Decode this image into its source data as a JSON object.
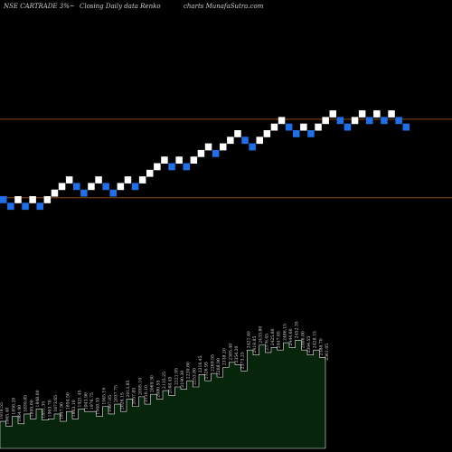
{
  "header": {
    "title": "NSE CARTRADE 3%~",
    "subtitle": "Closing Daily data  Renko",
    "source": "charts MunafaSutra.com"
  },
  "colors": {
    "background": "#000000",
    "up_brick": "#ffffff",
    "down_brick": "#1e6fe8",
    "reference_line": "#8a4a12",
    "volume_fill": "#06250a",
    "volume_stroke": "#e8e8e8"
  },
  "chart_data": [
    {
      "type": "renko",
      "box_size_percent": 3,
      "brick_level_range": [
        -1,
        20
      ],
      "bricks": [
        {
          "level": 0,
          "dir": "down"
        },
        {
          "level": -1,
          "dir": "down"
        },
        {
          "level": 0,
          "dir": "up"
        },
        {
          "level": -1,
          "dir": "down"
        },
        {
          "level": 0,
          "dir": "up"
        },
        {
          "level": -1,
          "dir": "down"
        },
        {
          "level": 0,
          "dir": "up"
        },
        {
          "level": 1,
          "dir": "up"
        },
        {
          "level": 2,
          "dir": "up"
        },
        {
          "level": 3,
          "dir": "up"
        },
        {
          "level": 2,
          "dir": "down"
        },
        {
          "level": 1,
          "dir": "down"
        },
        {
          "level": 2,
          "dir": "up"
        },
        {
          "level": 3,
          "dir": "up"
        },
        {
          "level": 2,
          "dir": "down"
        },
        {
          "level": 1,
          "dir": "down"
        },
        {
          "level": 2,
          "dir": "up"
        },
        {
          "level": 3,
          "dir": "up"
        },
        {
          "level": 2,
          "dir": "down"
        },
        {
          "level": 3,
          "dir": "up"
        },
        {
          "level": 4,
          "dir": "up"
        },
        {
          "level": 5,
          "dir": "up"
        },
        {
          "level": 6,
          "dir": "up"
        },
        {
          "level": 5,
          "dir": "down"
        },
        {
          "level": 6,
          "dir": "up"
        },
        {
          "level": 5,
          "dir": "down"
        },
        {
          "level": 6,
          "dir": "up"
        },
        {
          "level": 7,
          "dir": "up"
        },
        {
          "level": 8,
          "dir": "up"
        },
        {
          "level": 7,
          "dir": "down"
        },
        {
          "level": 8,
          "dir": "up"
        },
        {
          "level": 9,
          "dir": "up"
        },
        {
          "level": 10,
          "dir": "up"
        },
        {
          "level": 9,
          "dir": "down"
        },
        {
          "level": 8,
          "dir": "down"
        },
        {
          "level": 9,
          "dir": "up"
        },
        {
          "level": 10,
          "dir": "up"
        },
        {
          "level": 11,
          "dir": "up"
        },
        {
          "level": 12,
          "dir": "up"
        },
        {
          "level": 11,
          "dir": "down"
        },
        {
          "level": 10,
          "dir": "down"
        },
        {
          "level": 11,
          "dir": "up"
        },
        {
          "level": 10,
          "dir": "down"
        },
        {
          "level": 11,
          "dir": "up"
        },
        {
          "level": 12,
          "dir": "up"
        },
        {
          "level": 13,
          "dir": "up"
        },
        {
          "level": 12,
          "dir": "down"
        },
        {
          "level": 11,
          "dir": "down"
        },
        {
          "level": 12,
          "dir": "up"
        },
        {
          "level": 13,
          "dir": "up"
        },
        {
          "level": 12,
          "dir": "down"
        },
        {
          "level": 13,
          "dir": "up"
        },
        {
          "level": 12,
          "dir": "down"
        },
        {
          "level": 13,
          "dir": "up"
        },
        {
          "level": 12,
          "dir": "down"
        },
        {
          "level": 11,
          "dir": "down"
        }
      ],
      "reference_levels": [
        12.2,
        0.3
      ]
    },
    {
      "type": "area",
      "series_role": "volume",
      "y_range": [
        0,
        1
      ],
      "values": [
        0.22,
        0.18,
        0.26,
        0.2,
        0.28,
        0.24,
        0.32,
        0.23,
        0.24,
        0.28,
        0.22,
        0.3,
        0.24,
        0.32,
        0.3,
        0.3,
        0.26,
        0.34,
        0.28,
        0.36,
        0.3,
        0.4,
        0.34,
        0.42,
        0.36,
        0.44,
        0.4,
        0.47,
        0.43,
        0.5,
        0.48,
        0.55,
        0.5,
        0.6,
        0.55,
        0.61,
        0.58,
        0.66,
        0.7,
        0.68,
        0.63,
        0.8,
        0.76,
        0.84,
        0.78,
        0.82,
        0.8,
        0.86,
        0.82,
        0.88,
        0.8,
        0.76,
        0.8,
        0.74,
        0.7
      ],
      "labels": [
        "1918.55",
        "1865.40",
        "1856.20",
        "1864.90",
        "1839.85",
        "1895.00",
        "1848.00",
        "1851.35",
        "1903.70",
        "1873.65",
        "1847.90",
        "1854.50",
        "1863.10",
        "1921.45",
        "1943.90",
        "1976.75",
        "1948.35",
        "1945.10",
        "1997.05",
        "2037.75",
        "2026.15",
        "2013.85",
        "2057.85",
        "2095.10",
        "2110.10",
        "2069.30",
        "2080.55",
        "2135.25",
        "2168.45",
        "2221.95",
        "2190.30",
        "2239.80",
        "2253.80",
        "2316.45",
        "2326.95",
        "2269.55",
        "2288.90",
        "2338.20",
        "2385.40",
        "2354.20",
        "2373.25",
        "2421.40",
        "2418.85",
        "2433.80",
        "2376.45",
        "2425.80",
        "2447.05",
        "2486.15",
        "2444.60",
        "2452.35",
        "2466.00",
        "2394.55",
        "2428.15",
        "2388.70",
        "2361.05"
      ]
    }
  ]
}
